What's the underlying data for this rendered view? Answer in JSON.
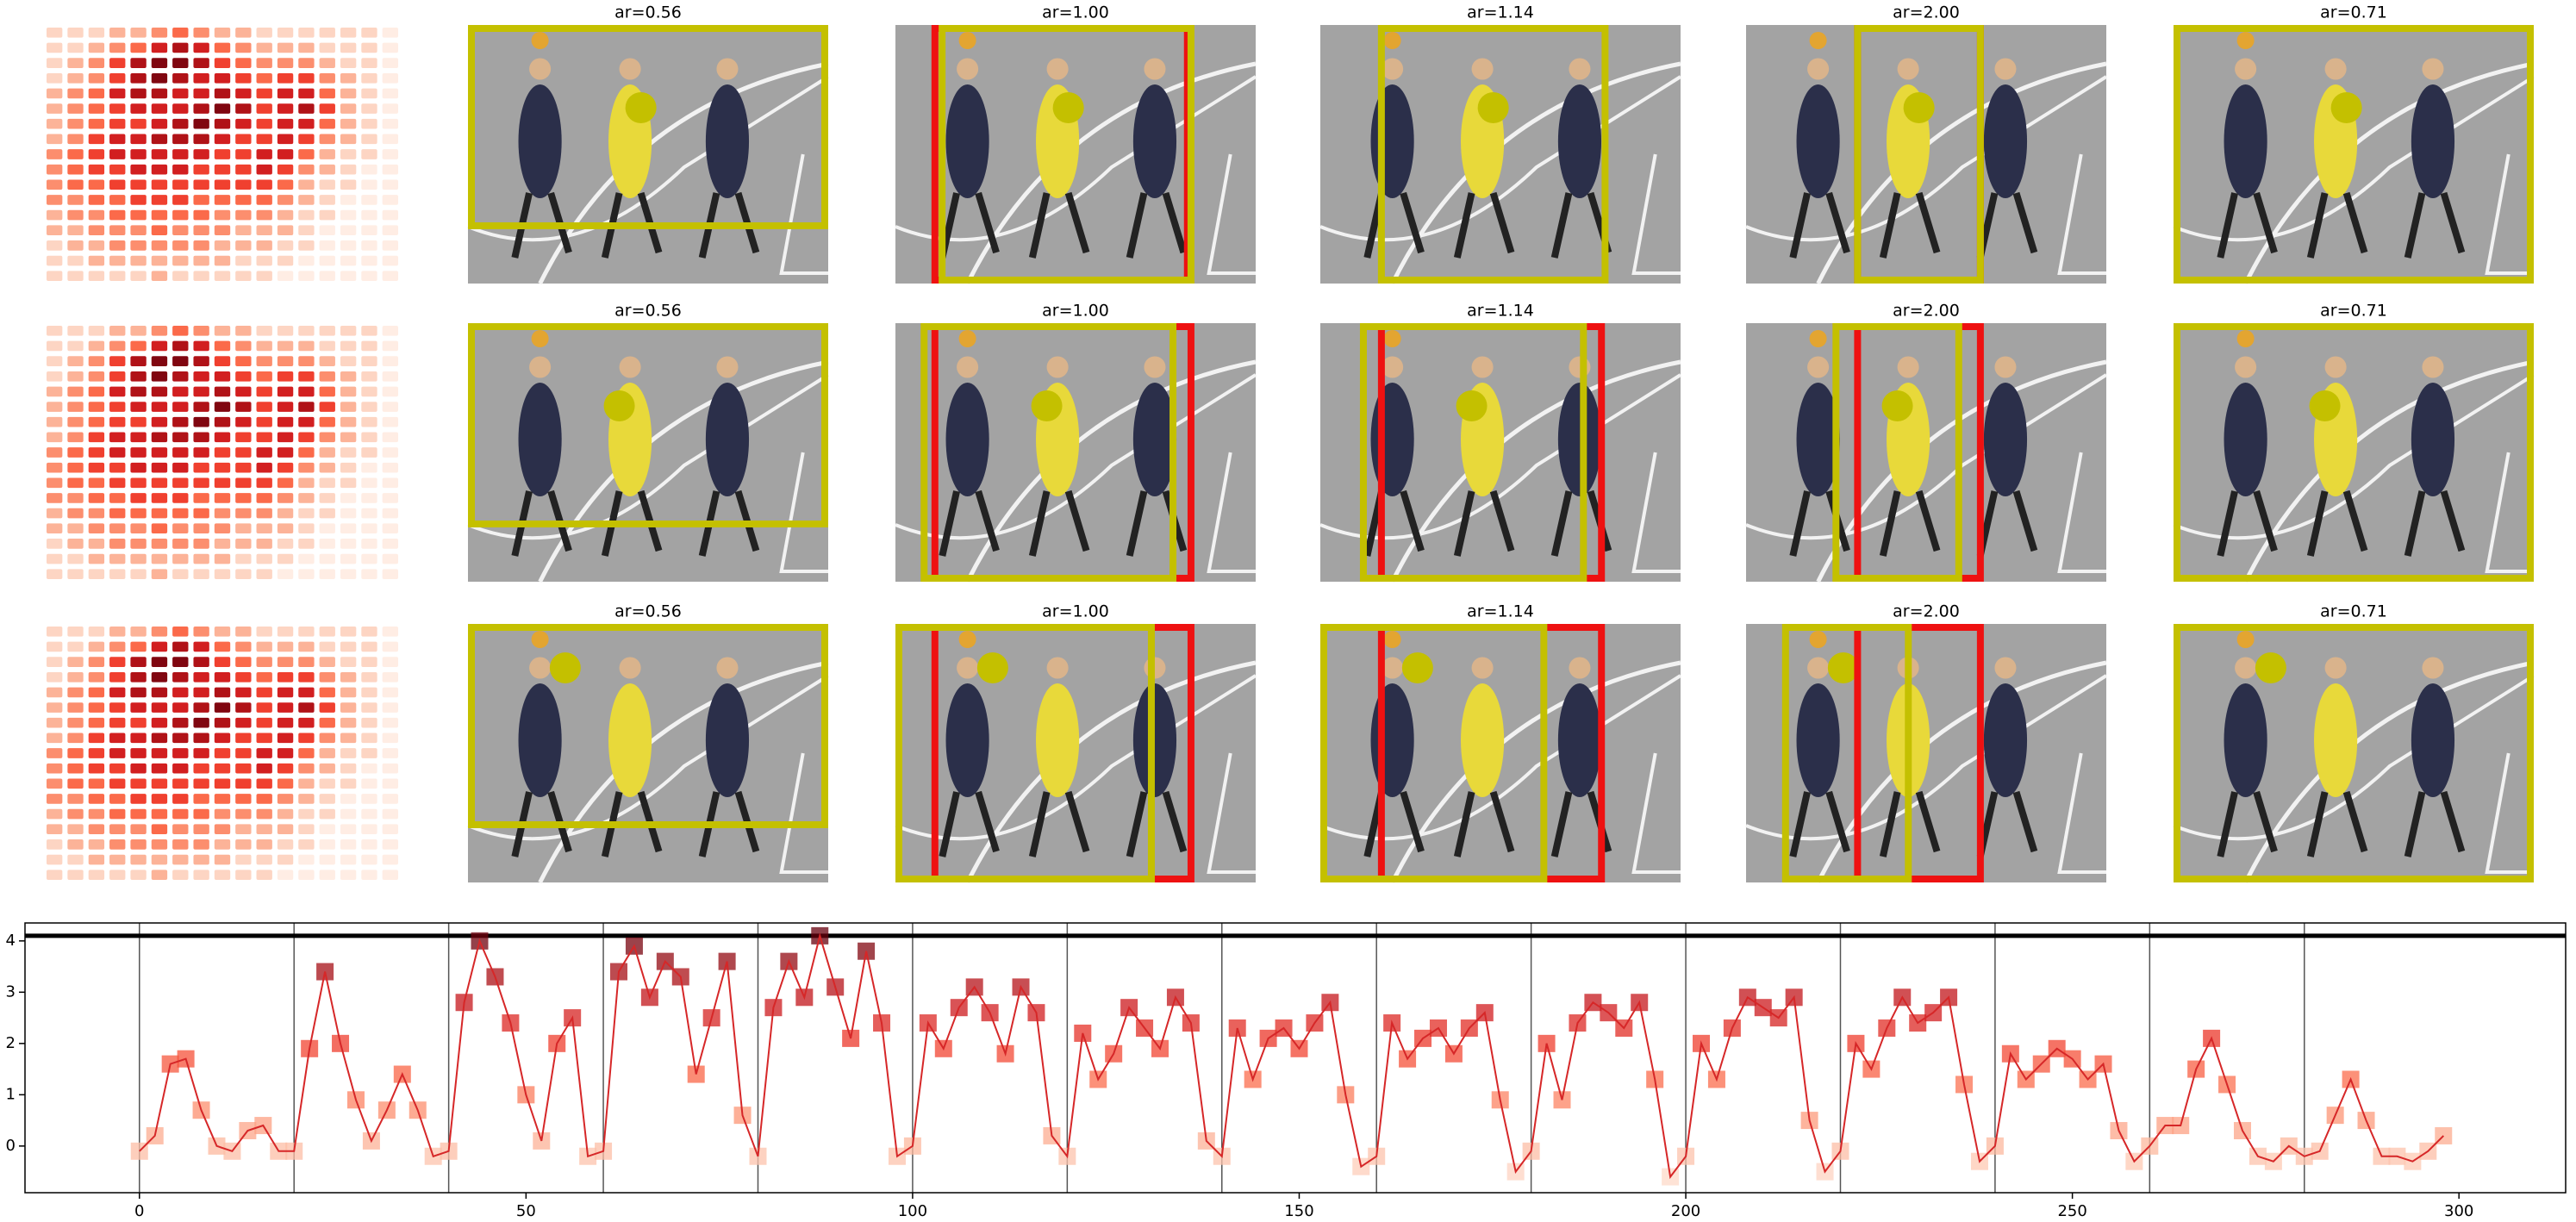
{
  "panel_titles": [
    [
      "ar=0.56",
      "ar=1.00",
      "ar=1.14",
      "ar=2.00",
      "ar=0.71"
    ],
    [
      "ar=0.56",
      "ar=1.00",
      "ar=1.14",
      "ar=2.00",
      "ar=0.71"
    ],
    [
      "ar=0.56",
      "ar=1.00",
      "ar=1.14",
      "ar=2.00",
      "ar=0.71"
    ]
  ],
  "heatmap": [
    [
      1,
      1,
      1,
      2,
      2,
      3,
      4,
      3,
      2,
      2,
      1,
      1,
      1,
      1,
      1,
      1,
      0
    ],
    [
      1,
      1,
      2,
      3,
      4,
      6,
      7,
      6,
      4,
      3,
      2,
      2,
      2,
      1,
      1,
      1,
      0
    ],
    [
      1,
      2,
      3,
      5,
      7,
      8,
      8,
      7,
      5,
      4,
      3,
      3,
      3,
      2,
      1,
      1,
      0
    ],
    [
      1,
      2,
      3,
      5,
      7,
      8,
      7,
      6,
      6,
      5,
      4,
      5,
      5,
      3,
      2,
      1,
      0
    ],
    [
      2,
      3,
      4,
      6,
      7,
      7,
      6,
      6,
      7,
      6,
      5,
      6,
      6,
      4,
      2,
      1,
      0
    ],
    [
      2,
      3,
      4,
      5,
      6,
      6,
      6,
      7,
      8,
      7,
      5,
      6,
      7,
      5,
      2,
      1,
      0
    ],
    [
      2,
      3,
      4,
      5,
      5,
      6,
      7,
      8,
      7,
      6,
      5,
      6,
      6,
      4,
      2,
      1,
      0
    ],
    [
      2,
      3,
      5,
      6,
      6,
      7,
      7,
      7,
      6,
      5,
      5,
      6,
      5,
      3,
      2,
      1,
      0
    ],
    [
      3,
      4,
      5,
      6,
      6,
      6,
      6,
      6,
      5,
      5,
      6,
      6,
      4,
      2,
      1,
      1,
      0
    ],
    [
      3,
      4,
      5,
      5,
      6,
      6,
      6,
      5,
      5,
      5,
      6,
      5,
      3,
      2,
      1,
      0,
      0
    ],
    [
      3,
      4,
      4,
      5,
      5,
      5,
      5,
      5,
      5,
      5,
      5,
      4,
      2,
      1,
      1,
      0,
      0
    ],
    [
      3,
      3,
      4,
      4,
      5,
      5,
      5,
      4,
      4,
      4,
      4,
      3,
      2,
      1,
      0,
      0,
      0
    ],
    [
      2,
      3,
      3,
      4,
      4,
      4,
      4,
      4,
      3,
      3,
      3,
      2,
      1,
      1,
      0,
      0,
      0
    ],
    [
      2,
      2,
      3,
      3,
      3,
      4,
      3,
      3,
      3,
      2,
      2,
      2,
      1,
      0,
      0,
      0,
      0
    ],
    [
      1,
      2,
      2,
      3,
      3,
      3,
      3,
      3,
      2,
      2,
      2,
      1,
      1,
      0,
      0,
      0,
      0
    ],
    [
      1,
      1,
      2,
      2,
      2,
      2,
      2,
      2,
      2,
      1,
      1,
      1,
      0,
      0,
      0,
      0,
      0
    ],
    [
      1,
      1,
      1,
      1,
      1,
      2,
      1,
      1,
      1,
      1,
      1,
      0,
      0,
      0,
      0,
      0,
      0
    ]
  ],
  "chart_data": {
    "type": "line",
    "x": [
      0,
      2,
      4,
      6,
      8,
      10,
      12,
      14,
      16,
      18,
      20,
      22,
      24,
      26,
      28,
      30,
      32,
      34,
      36,
      38,
      40,
      42,
      44,
      46,
      48,
      50,
      52,
      54,
      56,
      58,
      60,
      62,
      64,
      66,
      68,
      70,
      72,
      74,
      76,
      78,
      80,
      82,
      84,
      86,
      88,
      90,
      92,
      94,
      96,
      98,
      100,
      102,
      104,
      106,
      108,
      110,
      112,
      114,
      116,
      118,
      120,
      122,
      124,
      126,
      128,
      130,
      132,
      134,
      136,
      138,
      140,
      142,
      144,
      146,
      148,
      150,
      152,
      154,
      156,
      158,
      160,
      162,
      164,
      166,
      168,
      170,
      172,
      174,
      176,
      178,
      180,
      182,
      184,
      186,
      188,
      190,
      192,
      194,
      196,
      198,
      200,
      202,
      204,
      206,
      208,
      210,
      212,
      214,
      216,
      218,
      220,
      222,
      224,
      226,
      228,
      230,
      232,
      234,
      236,
      238,
      240,
      242,
      244,
      246,
      248,
      250,
      252,
      254,
      256,
      258,
      260,
      262,
      264,
      266,
      268,
      270,
      272,
      274,
      276,
      278,
      280,
      282,
      284,
      286,
      288,
      290,
      292,
      294,
      296,
      298
    ],
    "values": [
      -0.1,
      0.2,
      1.6,
      1.7,
      0.7,
      0.0,
      -0.1,
      0.3,
      0.4,
      -0.1,
      -0.1,
      1.9,
      3.4,
      2.0,
      0.9,
      0.1,
      0.7,
      1.4,
      0.7,
      -0.2,
      -0.1,
      2.8,
      4.0,
      3.3,
      2.4,
      1.0,
      0.1,
      2.0,
      2.5,
      -0.2,
      -0.1,
      3.4,
      3.9,
      2.9,
      3.6,
      3.3,
      1.4,
      2.5,
      3.6,
      0.6,
      -0.2,
      2.7,
      3.6,
      2.9,
      4.1,
      3.1,
      2.1,
      3.8,
      2.4,
      -0.2,
      0.0,
      2.4,
      1.9,
      2.7,
      3.1,
      2.6,
      1.8,
      3.1,
      2.6,
      0.2,
      -0.2,
      2.2,
      1.3,
      1.8,
      2.7,
      2.3,
      1.9,
      2.9,
      2.4,
      0.1,
      -0.2,
      2.3,
      1.3,
      2.1,
      2.3,
      1.9,
      2.4,
      2.8,
      1.0,
      -0.4,
      -0.2,
      2.4,
      1.7,
      2.1,
      2.3,
      1.8,
      2.3,
      2.6,
      0.9,
      -0.5,
      -0.1,
      2.0,
      0.9,
      2.4,
      2.8,
      2.6,
      2.3,
      2.8,
      1.3,
      -0.6,
      -0.2,
      2.0,
      1.3,
      2.3,
      2.9,
      2.7,
      2.5,
      2.9,
      0.5,
      -0.5,
      -0.1,
      2.0,
      1.5,
      2.3,
      2.9,
      2.4,
      2.6,
      2.9,
      1.2,
      -0.3,
      0.0,
      1.8,
      1.3,
      1.6,
      1.9,
      1.7,
      1.3,
      1.6,
      0.3,
      -0.3,
      0.0,
      0.4,
      0.4,
      1.5,
      2.1,
      1.2,
      0.3,
      -0.2,
      -0.3,
      0.0,
      -0.2,
      -0.1,
      0.6,
      1.3,
      0.5,
      -0.2,
      -0.2,
      -0.3,
      -0.1,
      0.2
    ],
    "color": "#d62728",
    "xlim": [
      -14.8,
      313.8
    ],
    "ylim": [
      -0.91,
      4.35
    ],
    "xticks": [
      0,
      50,
      100,
      150,
      200,
      250,
      300
    ],
    "yticks": [
      0,
      1,
      2,
      3,
      4
    ],
    "vlines": [
      0,
      20,
      40,
      60,
      80,
      100,
      120,
      140,
      160,
      180,
      200,
      220,
      240,
      260,
      280
    ],
    "hline": 4.1
  }
}
